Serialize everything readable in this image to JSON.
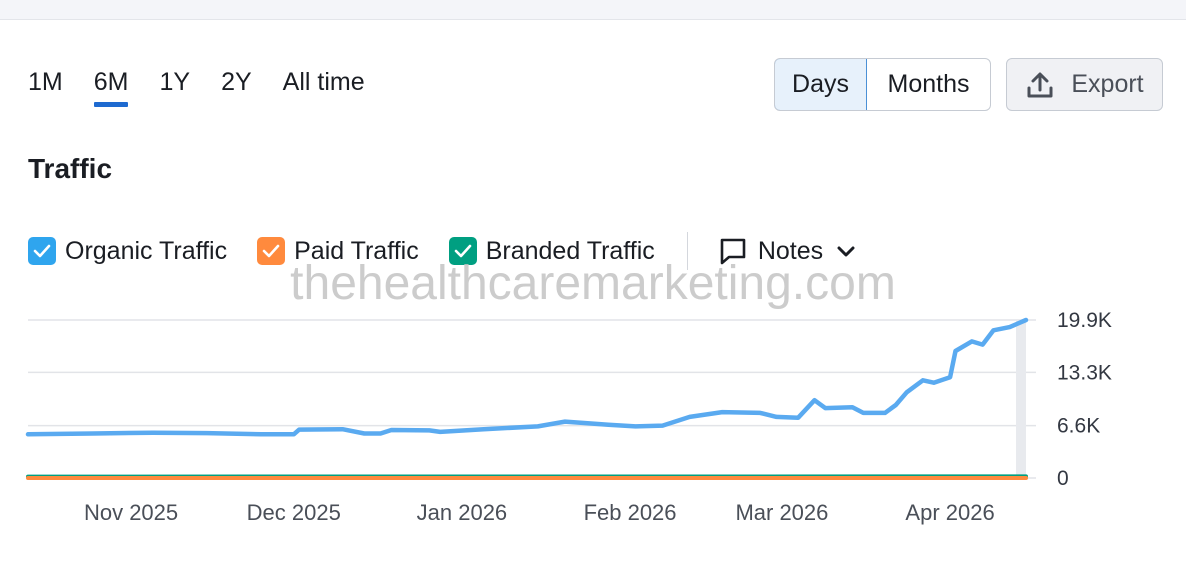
{
  "periods": [
    "1M",
    "6M",
    "1Y",
    "2Y",
    "All time"
  ],
  "active_period": "6M",
  "granularity": {
    "days_label": "Days",
    "months_label": "Months",
    "selected": "Days"
  },
  "export_label": "Export",
  "title": "Traffic",
  "legend": {
    "organic": "Organic Traffic",
    "paid": "Paid Traffic",
    "branded": "Branded Traffic",
    "notes": "Notes"
  },
  "watermark": "thehealthcaremarketing.com",
  "colors": {
    "organic": "#5aaaf0",
    "paid": "#ff8a3d",
    "branded": "#009f81",
    "accent": "#1e6ad0"
  },
  "icons": {
    "export": "upload-icon",
    "notes": "comment-icon",
    "notes_toggle": "chevron-down-icon",
    "check": "checkmark-icon"
  },
  "chart_data": {
    "type": "line",
    "x_range": [
      "2025-10-13",
      "2026-04-15"
    ],
    "x_ticks": [
      {
        "date": "2025-11-01",
        "label": "Nov 2025"
      },
      {
        "date": "2025-12-01",
        "label": "Dec 2025"
      },
      {
        "date": "2026-01-01",
        "label": "Jan 2026"
      },
      {
        "date": "2026-02-01",
        "label": "Feb 2026"
      },
      {
        "date": "2026-03-01",
        "label": "Mar 2026"
      },
      {
        "date": "2026-04-01",
        "label": "Apr 2026"
      }
    ],
    "y_ticks": [
      {
        "value": 0,
        "label": "0"
      },
      {
        "value": 6600,
        "label": "6.6K"
      },
      {
        "value": 13300,
        "label": "13.3K"
      },
      {
        "value": 19900,
        "label": "19.9K"
      }
    ],
    "ylim": [
      0,
      19900
    ],
    "grid": true,
    "series": [
      {
        "name": "Organic Traffic",
        "color": "#5aaaf0",
        "points": [
          [
            "2025-10-13",
            5500
          ],
          [
            "2025-10-25",
            5600
          ],
          [
            "2025-11-05",
            5700
          ],
          [
            "2025-11-15",
            5650
          ],
          [
            "2025-11-25",
            5500
          ],
          [
            "2025-12-01",
            5500
          ],
          [
            "2025-12-02",
            6100
          ],
          [
            "2025-12-10",
            6150
          ],
          [
            "2025-12-14",
            5600
          ],
          [
            "2025-12-17",
            5600
          ],
          [
            "2025-12-19",
            6050
          ],
          [
            "2025-12-26",
            6000
          ],
          [
            "2025-12-28",
            5800
          ],
          [
            "2026-01-05",
            6150
          ],
          [
            "2026-01-15",
            6500
          ],
          [
            "2026-01-20",
            7100
          ],
          [
            "2026-01-28",
            6700
          ],
          [
            "2026-02-02",
            6500
          ],
          [
            "2026-02-07",
            6600
          ],
          [
            "2026-02-12",
            7700
          ],
          [
            "2026-02-18",
            8300
          ],
          [
            "2026-02-25",
            8200
          ],
          [
            "2026-02-28",
            7700
          ],
          [
            "2026-03-04",
            7600
          ],
          [
            "2026-03-07",
            9800
          ],
          [
            "2026-03-09",
            8800
          ],
          [
            "2026-03-14",
            8900
          ],
          [
            "2026-03-16",
            8200
          ],
          [
            "2026-03-20",
            8200
          ],
          [
            "2026-03-22",
            9200
          ],
          [
            "2026-03-24",
            10800
          ],
          [
            "2026-03-27",
            12300
          ],
          [
            "2026-03-29",
            12000
          ],
          [
            "2026-04-01",
            12700
          ],
          [
            "2026-04-02",
            16000
          ],
          [
            "2026-04-05",
            17200
          ],
          [
            "2026-04-07",
            16800
          ],
          [
            "2026-04-09",
            18600
          ],
          [
            "2026-04-12",
            19000
          ],
          [
            "2026-04-15",
            19900
          ]
        ]
      },
      {
        "name": "Paid Traffic",
        "color": "#ff8a3d",
        "points": [
          [
            "2025-10-13",
            0
          ],
          [
            "2026-04-15",
            0
          ]
        ]
      },
      {
        "name": "Branded Traffic",
        "color": "#009f81",
        "points": [
          [
            "2025-10-13",
            180
          ],
          [
            "2026-04-15",
            200
          ]
        ]
      }
    ]
  }
}
